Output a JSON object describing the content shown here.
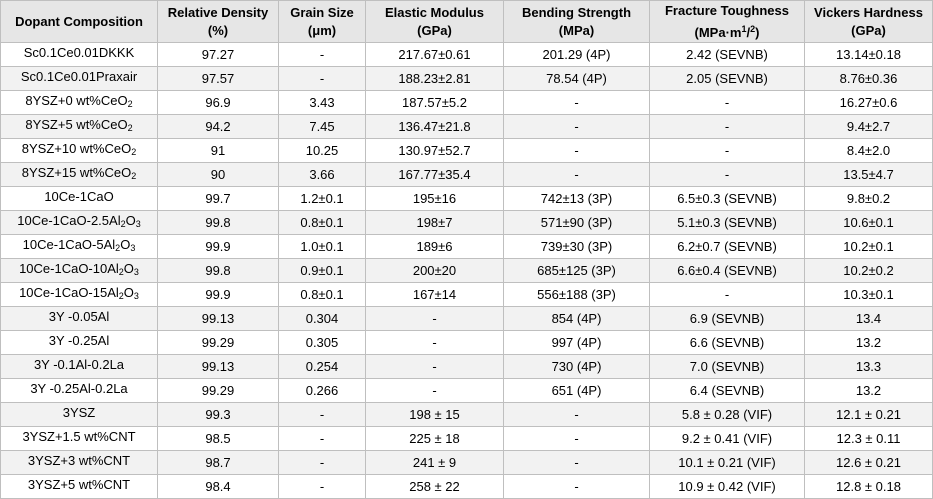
{
  "table": {
    "headers": [
      {
        "line1": "Dopant Composition",
        "line2": ""
      },
      {
        "line1": "Relative Density",
        "line2": "(%)"
      },
      {
        "line1": "Grain Size",
        "line2": "(μm)"
      },
      {
        "line1": "Elastic Modulus",
        "line2": "(GPa)"
      },
      {
        "line1": "Bending Strength",
        "line2": "(MPa)"
      },
      {
        "line1": "Fracture Toughness",
        "line2_pre": "(MPa·m",
        "line2_sup": "1",
        "line2_post": "/",
        "line2_sup2": "2",
        "line2_end": ")"
      },
      {
        "line1": "Vickers Hardness",
        "line2": "(GPa)"
      }
    ],
    "rows": [
      {
        "comp": {
          "pre": "Sc0.1Ce0.01DKKK",
          "sub": "",
          "post": ""
        },
        "density": "97.27",
        "grain": "-",
        "modulus": "217.67±0.61",
        "bending": "201.29 (4P)",
        "toughness": "2.42 (SEVNB)",
        "hardness": "13.14±0.18"
      },
      {
        "comp": {
          "pre": "Sc0.1Ce0.01Praxair",
          "sub": "",
          "post": ""
        },
        "density": "97.57",
        "grain": "-",
        "modulus": "188.23±2.81",
        "bending": "78.54 (4P)",
        "toughness": "2.05 (SEVNB)",
        "hardness": "8.76±0.36"
      },
      {
        "comp": {
          "pre": "8YSZ+0 wt%CeO",
          "sub": "2",
          "post": ""
        },
        "density": "96.9",
        "grain": "3.43",
        "modulus": "187.57±5.2",
        "bending": "-",
        "toughness": "-",
        "hardness": "16.27±0.6"
      },
      {
        "comp": {
          "pre": "8YSZ+5 wt%CeO",
          "sub": "2",
          "post": ""
        },
        "density": "94.2",
        "grain": "7.45",
        "modulus": "136.47±21.8",
        "bending": "-",
        "toughness": "-",
        "hardness": "9.4±2.7"
      },
      {
        "comp": {
          "pre": "8YSZ+10 wt%CeO",
          "sub": "2",
          "post": ""
        },
        "density": "91",
        "grain": "10.25",
        "modulus": "130.97±52.7",
        "bending": "-",
        "toughness": "-",
        "hardness": "8.4±2.0"
      },
      {
        "comp": {
          "pre": "8YSZ+15 wt%CeO",
          "sub": "2",
          "post": ""
        },
        "density": "90",
        "grain": "3.66",
        "modulus": "167.77±35.4",
        "bending": "-",
        "toughness": "-",
        "hardness": "13.5±4.7"
      },
      {
        "comp": {
          "pre": "10Ce-1CaO",
          "sub": "",
          "post": ""
        },
        "density": "99.7",
        "grain": "1.2±0.1",
        "modulus": "195±16",
        "bending": "742±13 (3P)",
        "toughness": "6.5±0.3 (SEVNB)",
        "hardness": "9.8±0.2"
      },
      {
        "comp": {
          "pre": "10Ce-1CaO-2.5Al",
          "sub": "2",
          "post": "O3"
        },
        "density": "99.8",
        "grain": "0.8±0.1",
        "modulus": "198±7",
        "bending": "571±90 (3P)",
        "toughness": "5.1±0.3 (SEVNB)",
        "hardness": "10.6±0.1"
      },
      {
        "comp": {
          "pre": "10Ce-1CaO-5Al",
          "sub": "2",
          "post": "O3"
        },
        "density": "99.9",
        "grain": "1.0±0.1",
        "modulus": "189±6",
        "bending": "739±30 (3P)",
        "toughness": "6.2±0.7 (SEVNB)",
        "hardness": "10.2±0.1"
      },
      {
        "comp": {
          "pre": "10Ce-1CaO-10Al",
          "sub": "2",
          "post": "O3"
        },
        "density": "99.8",
        "grain": "0.9±0.1",
        "modulus": "200±20",
        "bending": "685±125 (3P)",
        "toughness": "6.6±0.4 (SEVNB)",
        "hardness": "10.2±0.2"
      },
      {
        "comp": {
          "pre": "10Ce-1CaO-15Al",
          "sub": "2",
          "post": "O3"
        },
        "density": "99.9",
        "grain": "0.8±0.1",
        "modulus": "167±14",
        "bending": "556±188 (3P)",
        "toughness": "-",
        "hardness": "10.3±0.1"
      },
      {
        "comp": {
          "pre": "3Y -0.05Al",
          "sub": "",
          "post": ""
        },
        "density": "99.13",
        "grain": "0.304",
        "modulus": "-",
        "bending": "854 (4P)",
        "toughness": "6.9 (SEVNB)",
        "hardness": "13.4"
      },
      {
        "comp": {
          "pre": "3Y -0.25Al",
          "sub": "",
          "post": ""
        },
        "density": "99.29",
        "grain": "0.305",
        "modulus": "-",
        "bending": "997 (4P)",
        "toughness": "6.6 (SEVNB)",
        "hardness": "13.2"
      },
      {
        "comp": {
          "pre": "3Y -0.1Al-0.2La",
          "sub": "",
          "post": ""
        },
        "density": "99.13",
        "grain": "0.254",
        "modulus": "-",
        "bending": "730 (4P)",
        "toughness": "7.0 (SEVNB)",
        "hardness": "13.3"
      },
      {
        "comp": {
          "pre": "3Y -0.25Al-0.2La",
          "sub": "",
          "post": ""
        },
        "density": "99.29",
        "grain": "0.266",
        "modulus": "-",
        "bending": "651 (4P)",
        "toughness": "6.4 (SEVNB)",
        "hardness": "13.2"
      },
      {
        "comp": {
          "pre": "3YSZ",
          "sub": "",
          "post": ""
        },
        "density": "99.3",
        "grain": "-",
        "modulus": "198 ± 15",
        "bending": "-",
        "toughness": "5.8 ± 0.28 (VIF)",
        "hardness": "12.1 ± 0.21"
      },
      {
        "comp": {
          "pre": "3YSZ+1.5 wt%CNT",
          "sub": "",
          "post": ""
        },
        "density": "98.5",
        "grain": "-",
        "modulus": "225 ± 18",
        "bending": "-",
        "toughness": "9.2 ± 0.41 (VIF)",
        "hardness": "12.3 ± 0.11"
      },
      {
        "comp": {
          "pre": "3YSZ+3 wt%CNT",
          "sub": "",
          "post": ""
        },
        "density": "98.7",
        "grain": "-",
        "modulus": "241 ± 9",
        "bending": "-",
        "toughness": "10.1 ± 0.21 (VIF)",
        "hardness": "12.6 ± 0.21"
      },
      {
        "comp": {
          "pre": "3YSZ+5 wt%CNT",
          "sub": "",
          "post": ""
        },
        "density": "98.4",
        "grain": "-",
        "modulus": "258 ± 22",
        "bending": "-",
        "toughness": "10.9 ± 0.42 (VIF)",
        "hardness": "12.8 ± 0.18"
      }
    ]
  }
}
